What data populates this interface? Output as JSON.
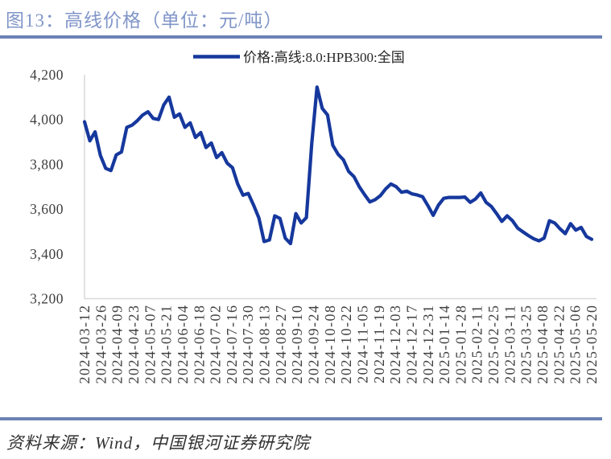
{
  "figure": {
    "title": "图13：高线价格（单位：元/吨）",
    "source_note": "资料来源：Wind，中国银河证券研究院"
  },
  "legend": {
    "label": "价格:高线:8.0:HPB300:全国"
  },
  "colors": {
    "title_text": "#8095C8",
    "divider": "#6B82B5",
    "series_line": "#16389D",
    "axis_line": "#D9D9D9",
    "tick_text": "#3F3F3F",
    "legend_text": "#262626",
    "source_text": "#303030"
  },
  "chart_data": {
    "type": "line",
    "title": "图13：高线价格（单位：元/吨）",
    "unit": "元/吨",
    "grid": false,
    "legend_position": "top-center",
    "ylim": [
      3200,
      4200
    ],
    "y_ticks": [
      3200,
      3400,
      3600,
      3800,
      4000,
      4200
    ],
    "y_tick_labels": [
      "3,200",
      "3,400",
      "3,600",
      "3,800",
      "4,000",
      "4,200"
    ],
    "x_tick_labels": [
      "2024-03-12",
      "2024-03-26",
      "2024-04-09",
      "2024-04-23",
      "2024-05-07",
      "2024-05-21",
      "2024-06-04",
      "2024-06-18",
      "2024-07-02",
      "2024-07-16",
      "2024-07-30",
      "2024-08-13",
      "2024-08-27",
      "2024-09-10",
      "2024-09-24",
      "2024-10-08",
      "2024-10-22",
      "2024-11-05",
      "2024-11-19",
      "2024-12-03",
      "2024-12-17",
      "2024-12-31",
      "2025-01-14",
      "2025-01-28",
      "2025-02-11",
      "2025-02-25",
      "2025-03-11",
      "2025-03-25",
      "2025-04-08",
      "2025-04-22",
      "2025-05-06",
      "2025-05-20"
    ],
    "series": [
      {
        "name": "价格:高线:8.0:HPB300:全国",
        "values": [
          3990,
          3905,
          3945,
          3840,
          3782,
          3772,
          3842,
          3855,
          3965,
          3975,
          3995,
          4020,
          4035,
          4005,
          4000,
          4065,
          4100,
          4010,
          4025,
          3965,
          3985,
          3920,
          3942,
          3875,
          3895,
          3830,
          3852,
          3805,
          3785,
          3712,
          3662,
          3670,
          3618,
          3560,
          3455,
          3462,
          3570,
          3558,
          3470,
          3446,
          3580,
          3538,
          3562,
          3890,
          4145,
          4050,
          4020,
          3885,
          3845,
          3820,
          3768,
          3745,
          3700,
          3665,
          3632,
          3642,
          3660,
          3690,
          3712,
          3700,
          3675,
          3680,
          3668,
          3663,
          3655,
          3615,
          3572,
          3618,
          3648,
          3652,
          3652,
          3652,
          3654,
          3630,
          3645,
          3672,
          3630,
          3612,
          3580,
          3545,
          3570,
          3548,
          3515,
          3498,
          3482,
          3468,
          3458,
          3470,
          3548,
          3538,
          3512,
          3490,
          3535,
          3506,
          3518,
          3478,
          3465
        ]
      }
    ]
  }
}
